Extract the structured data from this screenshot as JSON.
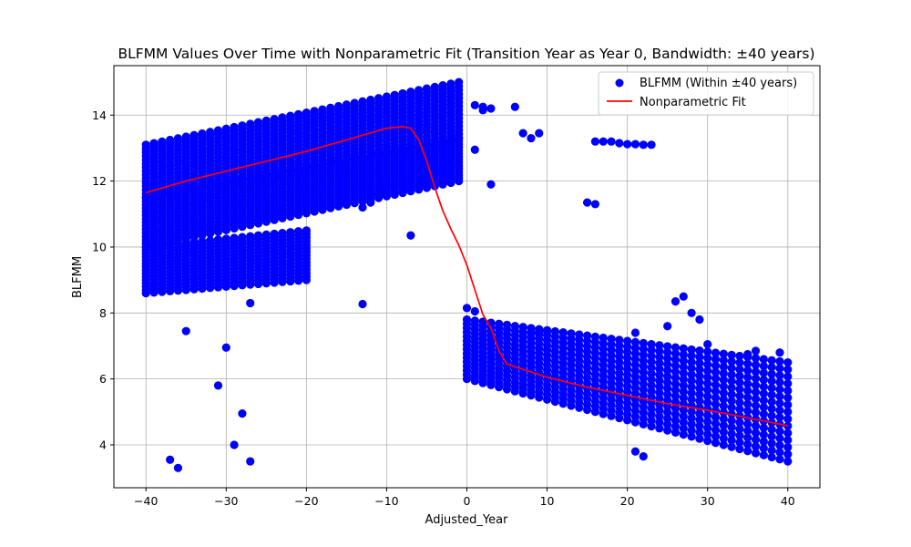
{
  "chart_data": {
    "type": "scatter",
    "title": "BLFMM Values Over Time with Nonparametric Fit (Transition Year as Year 0, Bandwidth: ±40 years)",
    "xlabel": "Adjusted_Year",
    "ylabel": "BLFMM",
    "xlim": [
      -44,
      44
    ],
    "ylim": [
      2.7,
      15.5
    ],
    "xticks": [
      -40,
      -30,
      -20,
      -10,
      0,
      10,
      20,
      30,
      40
    ],
    "yticks": [
      4,
      6,
      8,
      10,
      12,
      14
    ],
    "grid": true,
    "legend_position": "top-right",
    "series": [
      {
        "name": "BLFMM (Within ±40 years)",
        "kind": "scatter",
        "color": "#0000ff",
        "description_bands": [
          {
            "x": [
              -40,
              -1
            ],
            "y_start": [
              11.5,
              13.3
            ],
            "y_end": [
              13.1,
              15.0
            ]
          },
          {
            "x": [
              -40,
              -1
            ],
            "y_start": [
              10.0,
              12.0
            ],
            "y_end": [
              11.5,
              13.3
            ]
          },
          {
            "x": [
              -40,
              -20
            ],
            "y_start": [
              8.6,
              9.0
            ],
            "y_end": [
              10.0,
              10.5
            ]
          },
          {
            "x": [
              0,
              40
            ],
            "y_start": [
              6.0,
              3.5
            ],
            "y_end": [
              7.8,
              6.5
            ]
          }
        ],
        "outliers": [
          [
            -37,
            3.55
          ],
          [
            -36,
            3.3
          ],
          [
            -35,
            7.45
          ],
          [
            -31,
            5.8
          ],
          [
            -30,
            6.95
          ],
          [
            -29,
            4.0
          ],
          [
            -28,
            4.95
          ],
          [
            -27,
            3.5
          ],
          [
            -27,
            8.3
          ],
          [
            -13,
            8.27
          ],
          [
            -7,
            10.35
          ],
          [
            -8,
            11.9
          ],
          [
            -10,
            11.85
          ],
          [
            -13,
            11.2
          ],
          [
            -12,
            11.35
          ],
          [
            -11,
            11.6
          ],
          [
            1,
            12.95
          ],
          [
            1,
            14.3
          ],
          [
            2,
            14.25
          ],
          [
            2,
            14.15
          ],
          [
            3,
            14.2
          ],
          [
            3,
            11.9
          ],
          [
            6,
            14.25
          ],
          [
            7,
            13.45
          ],
          [
            8,
            13.3
          ],
          [
            9,
            13.45
          ],
          [
            15,
            11.35
          ],
          [
            16,
            11.3
          ],
          [
            16,
            13.2
          ],
          [
            17,
            13.2
          ],
          [
            18,
            13.2
          ],
          [
            19,
            13.15
          ],
          [
            20,
            13.12
          ],
          [
            21,
            13.12
          ],
          [
            22,
            13.1
          ],
          [
            23,
            13.1
          ],
          [
            0,
            8.15
          ],
          [
            1,
            8.05
          ],
          [
            8,
            7.4
          ],
          [
            9,
            7.45
          ],
          [
            10,
            7.45
          ],
          [
            21,
            7.4
          ],
          [
            25,
            7.6
          ],
          [
            26,
            8.35
          ],
          [
            27,
            8.5
          ],
          [
            28,
            8.0
          ],
          [
            29,
            7.8
          ],
          [
            30,
            7.05
          ],
          [
            22,
            3.65
          ],
          [
            21,
            3.8
          ],
          [
            39,
            6.8
          ],
          [
            35,
            6.75
          ],
          [
            36,
            6.85
          ]
        ]
      },
      {
        "name": "Nonparametric Fit",
        "kind": "line",
        "color": "#ff0000",
        "x": [
          -40,
          -35,
          -30,
          -25,
          -20,
          -15,
          -10,
          -8,
          -7,
          -6,
          -5,
          -4,
          -3,
          -2,
          -1,
          0,
          1,
          2,
          3,
          4,
          5,
          10,
          15,
          20,
          25,
          30,
          35,
          40
        ],
        "y": [
          11.65,
          12.0,
          12.3,
          12.6,
          12.9,
          13.25,
          13.6,
          13.65,
          13.6,
          13.25,
          12.6,
          11.8,
          11.1,
          10.55,
          10.05,
          9.45,
          8.7,
          7.95,
          7.55,
          6.85,
          6.45,
          6.05,
          5.75,
          5.5,
          5.25,
          5.05,
          4.82,
          4.58
        ]
      }
    ]
  }
}
